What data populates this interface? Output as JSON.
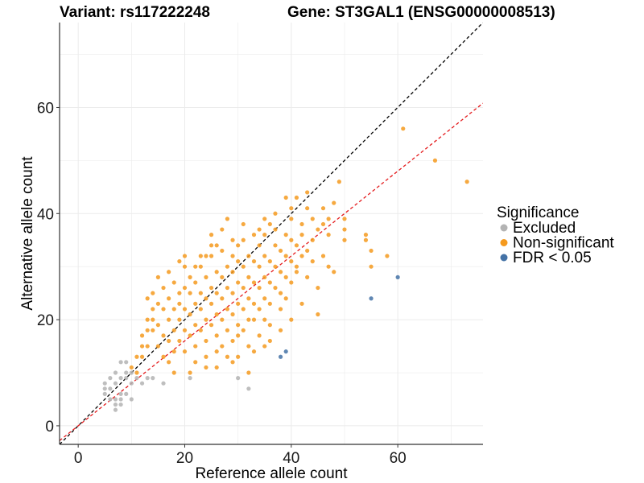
{
  "chart_data": {
    "type": "scatter",
    "title_left": "Variant: rs117222248",
    "title_right": "Gene: ST3GAL1 (ENSG00000008513)",
    "xlabel": "Reference allele count",
    "ylabel": "Alternative allele count",
    "xlim": [
      -3.5,
      76
    ],
    "ylim": [
      -3.5,
      76
    ],
    "xticks": [
      0,
      20,
      40,
      60
    ],
    "yticks": [
      0,
      20,
      40,
      60
    ],
    "grid": true,
    "reference_lines": [
      {
        "name": "y = x",
        "slope": 1.0,
        "intercept": 0,
        "color": "#000000",
        "dash": "dashed"
      },
      {
        "name": "fit",
        "slope": 0.8,
        "intercept": 0,
        "color": "#e41a1c",
        "dash": "dashed"
      }
    ],
    "legend": {
      "title": "Significance",
      "position": "right",
      "entries": [
        {
          "label": "Excluded",
          "color": "#b3b3b3"
        },
        {
          "label": "Non-significant",
          "color": "#f59a1e"
        },
        {
          "label": "FDR < 0.05",
          "color": "#4472a6"
        }
      ]
    },
    "series": [
      {
        "name": "Excluded",
        "color": "#b3b3b3",
        "points": [
          [
            5,
            8
          ],
          [
            5,
            7
          ],
          [
            5,
            6
          ],
          [
            6,
            7
          ],
          [
            6,
            5
          ],
          [
            7,
            5
          ],
          [
            7,
            4
          ],
          [
            7,
            3
          ],
          [
            8,
            6
          ],
          [
            8,
            5
          ],
          [
            8,
            4
          ],
          [
            8,
            9
          ],
          [
            8,
            12
          ],
          [
            9,
            12
          ],
          [
            9,
            10
          ],
          [
            9,
            9
          ],
          [
            9,
            6
          ],
          [
            7,
            8
          ],
          [
            7,
            10
          ],
          [
            6,
            9
          ],
          [
            10,
            8
          ],
          [
            10,
            10
          ],
          [
            11,
            9
          ],
          [
            12,
            8
          ],
          [
            13,
            9
          ],
          [
            14,
            9
          ],
          [
            16,
            8
          ],
          [
            21,
            9
          ],
          [
            30,
            9
          ],
          [
            32,
            7
          ],
          [
            10,
            5
          ]
        ]
      },
      {
        "name": "Non-significant",
        "color": "#f59a1e",
        "points": [
          [
            10,
            11
          ],
          [
            11,
            10
          ],
          [
            12,
            13
          ],
          [
            12,
            15
          ],
          [
            12,
            17
          ],
          [
            13,
            15
          ],
          [
            13,
            18
          ],
          [
            13,
            20
          ],
          [
            14,
            18
          ],
          [
            14,
            20
          ],
          [
            14,
            22
          ],
          [
            14,
            25
          ],
          [
            15,
            15
          ],
          [
            15,
            19
          ],
          [
            15,
            23
          ],
          [
            16,
            13
          ],
          [
            16,
            17
          ],
          [
            16,
            22
          ],
          [
            16,
            26
          ],
          [
            17,
            16
          ],
          [
            17,
            20
          ],
          [
            17,
            24
          ],
          [
            17,
            12
          ],
          [
            18,
            14
          ],
          [
            18,
            18
          ],
          [
            18,
            22
          ],
          [
            18,
            27
          ],
          [
            18,
            10
          ],
          [
            19,
            16
          ],
          [
            19,
            20
          ],
          [
            19,
            23
          ],
          [
            19,
            25
          ],
          [
            20,
            14
          ],
          [
            20,
            18
          ],
          [
            20,
            22
          ],
          [
            20,
            26
          ],
          [
            20,
            30
          ],
          [
            21,
            17
          ],
          [
            21,
            21
          ],
          [
            21,
            25
          ],
          [
            21,
            28
          ],
          [
            21,
            10
          ],
          [
            22,
            15
          ],
          [
            22,
            19
          ],
          [
            22,
            23
          ],
          [
            22,
            27
          ],
          [
            22,
            12
          ],
          [
            23,
            18
          ],
          [
            23,
            22
          ],
          [
            23,
            25
          ],
          [
            23,
            30
          ],
          [
            24,
            16
          ],
          [
            24,
            20
          ],
          [
            24,
            24
          ],
          [
            24,
            28
          ],
          [
            24,
            13
          ],
          [
            25,
            19
          ],
          [
            25,
            23
          ],
          [
            25,
            26
          ],
          [
            25,
            32
          ],
          [
            25,
            36
          ],
          [
            26,
            17
          ],
          [
            26,
            21
          ],
          [
            26,
            25
          ],
          [
            26,
            29
          ],
          [
            26,
            11
          ],
          [
            27,
            20
          ],
          [
            27,
            24
          ],
          [
            27,
            28
          ],
          [
            27,
            33
          ],
          [
            27,
            15
          ],
          [
            28,
            18
          ],
          [
            28,
            22
          ],
          [
            28,
            26
          ],
          [
            28,
            30
          ],
          [
            28,
            39
          ],
          [
            29,
            21
          ],
          [
            29,
            25
          ],
          [
            29,
            29
          ],
          [
            29,
            32
          ],
          [
            29,
            16
          ],
          [
            30,
            19
          ],
          [
            30,
            23
          ],
          [
            30,
            27
          ],
          [
            30,
            31
          ],
          [
            30,
            13
          ],
          [
            31,
            22
          ],
          [
            31,
            26
          ],
          [
            31,
            30
          ],
          [
            31,
            35
          ],
          [
            31,
            18
          ],
          [
            32,
            20
          ],
          [
            32,
            24
          ],
          [
            32,
            28
          ],
          [
            32,
            32
          ],
          [
            32,
            15
          ],
          [
            33,
            23
          ],
          [
            33,
            27
          ],
          [
            33,
            31
          ],
          [
            33,
            20
          ],
          [
            34,
            22
          ],
          [
            34,
            26
          ],
          [
            34,
            30
          ],
          [
            34,
            34
          ],
          [
            34,
            17
          ],
          [
            35,
            24
          ],
          [
            35,
            28
          ],
          [
            35,
            32
          ],
          [
            35,
            36
          ],
          [
            35,
            20
          ],
          [
            36,
            23
          ],
          [
            36,
            27
          ],
          [
            36,
            31
          ],
          [
            36,
            38
          ],
          [
            36,
            19
          ],
          [
            37,
            26
          ],
          [
            37,
            30
          ],
          [
            37,
            34
          ],
          [
            37,
            40
          ],
          [
            38,
            25
          ],
          [
            38,
            29
          ],
          [
            38,
            33
          ],
          [
            38,
            22
          ],
          [
            39,
            28
          ],
          [
            39,
            32
          ],
          [
            39,
            36
          ],
          [
            39,
            43
          ],
          [
            39,
            24
          ],
          [
            40,
            27
          ],
          [
            40,
            31
          ],
          [
            40,
            35
          ],
          [
            40,
            41
          ],
          [
            41,
            30
          ],
          [
            41,
            34
          ],
          [
            41,
            29
          ],
          [
            42,
            32
          ],
          [
            42,
            36
          ],
          [
            42,
            38
          ],
          [
            43,
            28
          ],
          [
            43,
            33
          ],
          [
            43,
            44
          ],
          [
            44,
            35
          ],
          [
            44,
            39
          ],
          [
            44,
            31
          ],
          [
            45,
            21
          ],
          [
            45,
            37
          ],
          [
            45,
            26
          ],
          [
            46,
            32
          ],
          [
            46,
            38
          ],
          [
            46,
            41
          ],
          [
            47,
            30
          ],
          [
            47,
            36
          ],
          [
            47,
            39
          ],
          [
            48,
            42
          ],
          [
            48,
            29
          ],
          [
            49,
            46
          ],
          [
            50,
            39
          ],
          [
            50,
            37
          ],
          [
            50,
            35
          ],
          [
            54,
            36
          ],
          [
            54,
            35
          ],
          [
            55,
            33
          ],
          [
            55,
            30
          ],
          [
            58,
            32
          ],
          [
            61,
            56
          ],
          [
            67,
            50
          ],
          [
            73,
            46
          ],
          [
            11,
            13
          ],
          [
            13,
            24
          ],
          [
            15,
            28
          ],
          [
            17,
            29
          ],
          [
            19,
            31
          ],
          [
            20,
            32
          ],
          [
            23,
            32
          ],
          [
            25,
            34
          ],
          [
            27,
            37
          ],
          [
            29,
            35
          ],
          [
            31,
            38
          ],
          [
            33,
            36
          ],
          [
            35,
            39
          ],
          [
            37,
            37
          ],
          [
            40,
            39
          ],
          [
            41,
            43
          ],
          [
            43,
            41
          ],
          [
            24,
            11
          ],
          [
            26,
            14
          ],
          [
            28,
            13
          ],
          [
            30,
            17
          ],
          [
            33,
            14
          ],
          [
            36,
            16
          ],
          [
            38,
            18
          ],
          [
            40,
            20
          ],
          [
            42,
            23
          ],
          [
            29,
            12
          ],
          [
            32,
            10
          ],
          [
            35,
            15
          ],
          [
            22,
            30
          ],
          [
            24,
            32
          ],
          [
            26,
            34
          ],
          [
            30,
            34
          ],
          [
            34,
            37
          ]
        ]
      },
      {
        "name": "FDR < 0.05",
        "color": "#4472a6",
        "points": [
          [
            38,
            13
          ],
          [
            39,
            14
          ],
          [
            55,
            24
          ],
          [
            60,
            28
          ]
        ]
      }
    ]
  }
}
